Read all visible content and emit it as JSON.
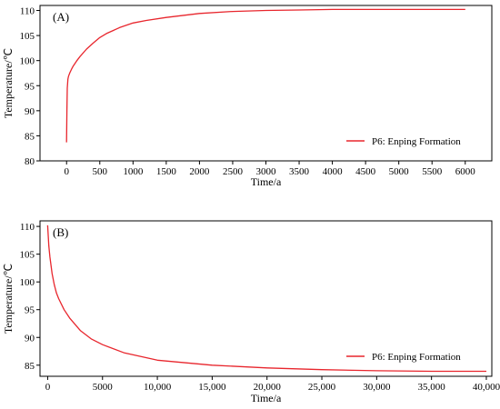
{
  "chart_data": [
    {
      "panel_label": "(A)",
      "type": "line",
      "xlabel": "Time/a",
      "ylabel": "Temperature/℃",
      "xlim": [
        -400,
        6400
      ],
      "ylim": [
        80,
        111
      ],
      "xticks": [
        0,
        500,
        1000,
        1500,
        2000,
        2500,
        3000,
        3500,
        4000,
        4500,
        5000,
        5500,
        6000
      ],
      "xtick_labels": [
        "0",
        "500",
        "1000",
        "1500",
        "2000",
        "2500",
        "3000",
        "3500",
        "4000",
        "4500",
        "5000",
        "5500",
        "6000"
      ],
      "yticks": [
        80,
        85,
        90,
        95,
        100,
        105,
        110
      ],
      "ytick_labels": [
        "80",
        "85",
        "90",
        "95",
        "100",
        "105",
        "110"
      ],
      "legend": "bottom-right",
      "grid": false,
      "series": [
        {
          "name": "P6: Enping Formation",
          "color": "#e8262d",
          "x": [
            0,
            5,
            10,
            20,
            30,
            50,
            75,
            100,
            150,
            200,
            300,
            400,
            500,
            600,
            700,
            800,
            1000,
            1200,
            1500,
            2000,
            2500,
            3000,
            3500,
            4000,
            4500,
            5000,
            5500,
            6000
          ],
          "y": [
            83.7,
            90.0,
            94.5,
            96.3,
            96.9,
            97.6,
            98.3,
            98.9,
            99.9,
            100.8,
            102.3,
            103.5,
            104.6,
            105.4,
            106.0,
            106.6,
            107.5,
            108.0,
            108.6,
            109.4,
            109.8,
            110.0,
            110.1,
            110.2,
            110.2,
            110.2,
            110.2,
            110.2
          ]
        }
      ]
    },
    {
      "panel_label": "(B)",
      "type": "line",
      "xlabel": "Time/a",
      "ylabel": "Temperature/℃",
      "xlim": [
        -700,
        40500
      ],
      "ylim": [
        83,
        111
      ],
      "xticks": [
        0,
        5000,
        10000,
        15000,
        20000,
        25000,
        30000,
        35000,
        40000
      ],
      "xtick_labels": [
        "0",
        "5000",
        "10,000",
        "15,000",
        "20,000",
        "25,000",
        "30,000",
        "35,000",
        "40,000"
      ],
      "yticks": [
        85,
        90,
        95,
        100,
        105,
        110
      ],
      "ytick_labels": [
        "85",
        "90",
        "95",
        "100",
        "105",
        "110"
      ],
      "legend": "bottom-right",
      "grid": false,
      "series": [
        {
          "name": "P6: Enping Formation",
          "color": "#e8262d",
          "x": [
            0,
            100,
            200,
            400,
            600,
            800,
            1000,
            1500,
            2000,
            3000,
            4000,
            5000,
            7000,
            10000,
            15000,
            20000,
            25000,
            30000,
            35000,
            40000
          ],
          "y": [
            110.2,
            106.5,
            104.5,
            101.5,
            99.5,
            98.0,
            97.0,
            95.0,
            93.5,
            91.2,
            89.7,
            88.7,
            87.2,
            85.9,
            85.0,
            84.5,
            84.2,
            84.0,
            83.9,
            83.9
          ]
        }
      ]
    }
  ]
}
